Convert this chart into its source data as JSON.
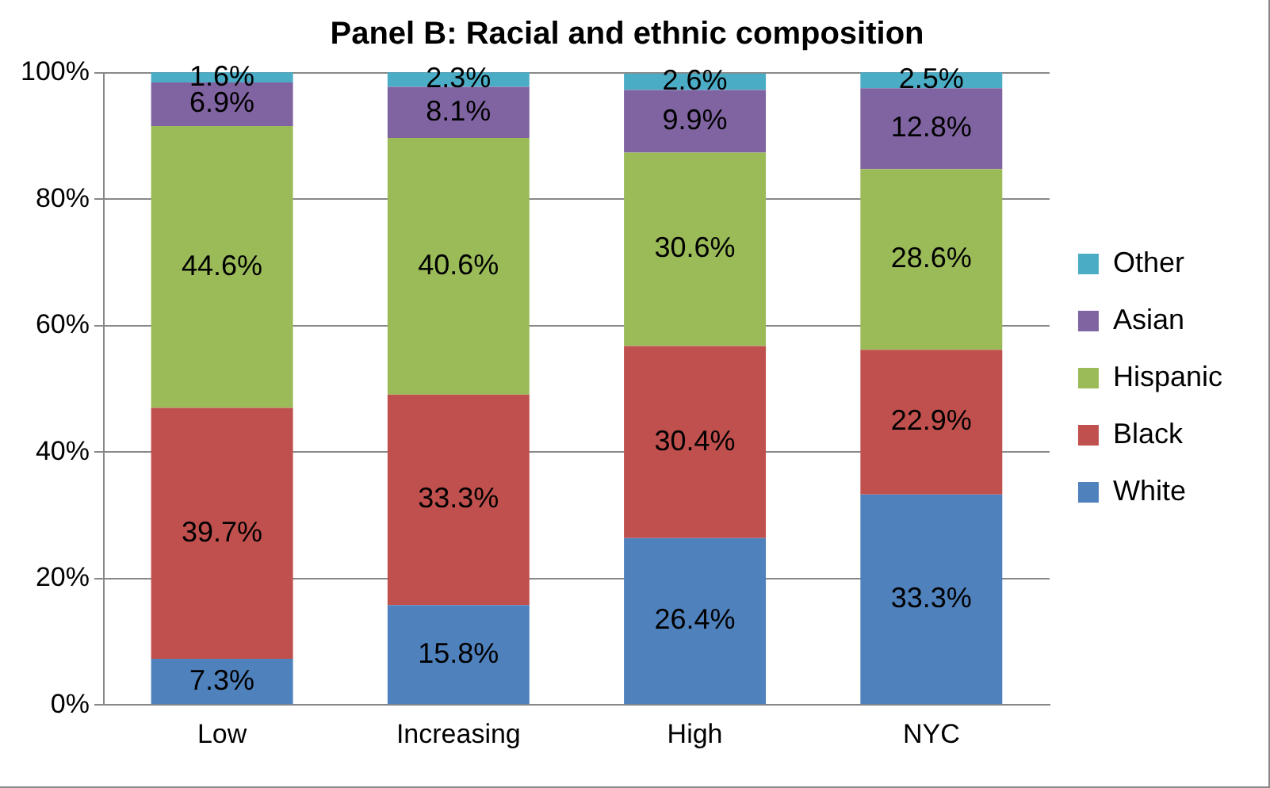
{
  "chart_data": {
    "type": "bar",
    "title": "Panel B: Racial and ethnic composition",
    "categories": [
      "Low",
      "Increasing",
      "High",
      "NYC"
    ],
    "stacked": true,
    "series": [
      {
        "name": "White",
        "color": "#4f81bd",
        "values": [
          7.3,
          15.8,
          26.4,
          33.3
        ],
        "value_labels": [
          "7.3%",
          "15.8%",
          "26.4%",
          "33.3%"
        ]
      },
      {
        "name": "Black",
        "color": "#c0504d",
        "values": [
          39.7,
          33.3,
          30.4,
          22.9
        ],
        "value_labels": [
          "39.7%",
          "33.3%",
          "30.4%",
          "22.9%"
        ]
      },
      {
        "name": "Hispanic",
        "color": "#9bbb59",
        "values": [
          44.6,
          40.6,
          30.6,
          28.6
        ],
        "value_labels": [
          "44.6%",
          "40.6%",
          "30.6%",
          "28.6%"
        ]
      },
      {
        "name": "Asian",
        "color": "#8064a2",
        "values": [
          6.9,
          8.1,
          9.9,
          12.8
        ],
        "value_labels": [
          "6.9%",
          "8.1%",
          "9.9%",
          "12.8%"
        ]
      },
      {
        "name": "Other",
        "color": "#4bacc6",
        "values": [
          1.6,
          2.3,
          2.6,
          2.5
        ],
        "value_labels": [
          "1.6%",
          "2.3%",
          "2.6%",
          "2.5%"
        ]
      }
    ],
    "ylim": [
      0,
      100
    ],
    "yticks": [
      {
        "value": 0,
        "label": "0%"
      },
      {
        "value": 20,
        "label": "20%"
      },
      {
        "value": 40,
        "label": "40%"
      },
      {
        "value": 60,
        "label": "60%"
      },
      {
        "value": 80,
        "label": "80%"
      },
      {
        "value": 100,
        "label": "100%"
      }
    ],
    "grid": "y",
    "legend": "right"
  }
}
